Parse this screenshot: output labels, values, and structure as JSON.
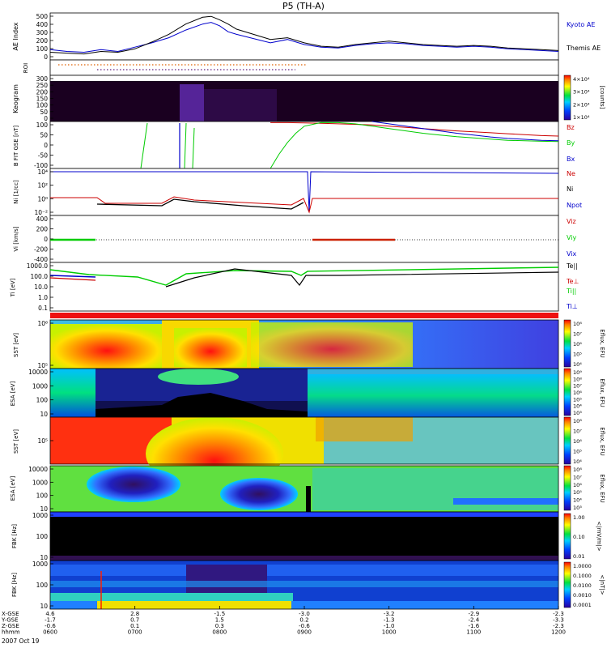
{
  "title": "P5 (TH-A)",
  "x_axis": {
    "rows": [
      {
        "label": "X-GSE",
        "values": [
          "4.6",
          "2.8",
          "-1.5",
          "-3.0",
          "-3.2",
          "-2.9",
          "-2.3"
        ]
      },
      {
        "label": "Y-GSE",
        "values": [
          "-1.7",
          "0.7",
          "1.5",
          "0.2",
          "-1.3",
          "-2.4",
          "-3.3"
        ]
      },
      {
        "label": "Z-GSE",
        "values": [
          "-0.6",
          "0.1",
          "0.3",
          "-0.6",
          "-1.0",
          "-1.6",
          "-2.3"
        ]
      },
      {
        "label": "hhmm",
        "values": [
          "0600",
          "0700",
          "0800",
          "0900",
          "1000",
          "1100",
          "1200"
        ]
      }
    ],
    "date_label": "2007 Oct 19"
  },
  "colorbars": {
    "kyogram": {
      "unit": "[counts]",
      "ticks": [
        "4×10⁴",
        "3×10⁴",
        "2×10⁴",
        "1×10⁴"
      ]
    },
    "sst1": {
      "unit": "Eflux, EFU",
      "ticks": [
        "10⁸",
        "10⁷",
        "10⁶",
        "10⁵",
        "10⁴"
      ]
    },
    "esa1": {
      "unit": "Eflux, EFU",
      "ticks": [
        "10⁹",
        "10⁸",
        "10⁷",
        "10⁶",
        "10⁵",
        "10⁴",
        "10³"
      ]
    },
    "sst2": {
      "unit": "Eflux, EFU",
      "ticks": [
        "10⁸",
        "10⁷",
        "10⁶",
        "10⁵",
        "10⁴"
      ]
    },
    "esa2": {
      "unit": "Eflux, EFU",
      "ticks": [
        "10⁸",
        "10⁷",
        "10⁶",
        "10⁵",
        "10⁴",
        "10³"
      ]
    },
    "fbk1": {
      "unit": "<|mV/m|>",
      "ticks": [
        "1.00",
        "0.10",
        "0.01"
      ]
    },
    "fbk2": {
      "unit": "<|nT|>",
      "ticks": [
        "1.0000",
        "0.1000",
        "0.0100",
        "0.0010",
        "0.0001"
      ]
    }
  },
  "chart_data": [
    {
      "type": "line",
      "panel": "ae",
      "ylabel": "AE Index",
      "ylim": [
        0,
        550
      ],
      "y_ticks": [
        "500",
        "400",
        "300",
        "200",
        "100",
        "0"
      ],
      "series": [
        {
          "name": "Kyoto AE",
          "color": "#0000cc",
          "t": [
            6.0,
            6.2,
            6.4,
            6.6,
            6.8,
            7.0,
            7.2,
            7.4,
            7.6,
            7.8,
            7.9,
            8.0,
            8.1,
            8.2,
            8.4,
            8.6,
            8.8,
            9.0,
            9.2,
            9.4,
            9.6,
            9.8,
            10.0,
            10.2,
            10.4,
            10.6,
            10.8,
            11.0,
            11.2,
            11.4,
            11.6,
            11.8,
            12.0
          ],
          "y": [
            120,
            100,
            90,
            120,
            100,
            150,
            200,
            260,
            350,
            420,
            440,
            400,
            330,
            300,
            250,
            200,
            240,
            180,
            150,
            140,
            170,
            190,
            200,
            190,
            170,
            160,
            150,
            160,
            150,
            130,
            120,
            110,
            100
          ]
        },
        {
          "name": "Themis AE",
          "color": "#000000",
          "t": [
            6.0,
            6.2,
            6.4,
            6.6,
            6.8,
            7.0,
            7.2,
            7.4,
            7.6,
            7.8,
            7.9,
            8.0,
            8.1,
            8.2,
            8.4,
            8.6,
            8.8,
            9.0,
            9.2,
            9.4,
            9.6,
            9.8,
            10.0,
            10.2,
            10.4,
            10.6,
            10.8,
            11.0,
            11.2,
            11.4,
            11.6,
            11.8,
            12.0
          ],
          "y": [
            90,
            80,
            70,
            100,
            90,
            130,
            210,
            300,
            420,
            500,
            510,
            470,
            420,
            360,
            300,
            240,
            260,
            200,
            160,
            150,
            180,
            200,
            220,
            200,
            180,
            170,
            160,
            170,
            160,
            140,
            130,
            120,
            110
          ]
        }
      ]
    },
    {
      "type": "scatter",
      "panel": "roi",
      "ylabel": "ROI"
    },
    {
      "type": "heatmap",
      "panel": "kyogram",
      "ylabel": "Keogram",
      "y_ticks": [
        "300",
        "250",
        "200",
        "150",
        "100",
        "50",
        "0"
      ]
    },
    {
      "type": "line",
      "panel": "bfit",
      "ylabel": "B FIT GSE [nT]",
      "ylim": [
        -100,
        100
      ],
      "y_ticks": [
        "100",
        "50",
        "0",
        "-50",
        "-100"
      ],
      "series": [
        {
          "name": "Bz",
          "color": "#cc0000",
          "t": [
            8.6,
            8.8,
            9.0,
            9.2,
            9.4,
            9.6,
            9.8,
            10.0,
            10.2,
            10.4,
            10.6,
            10.8,
            11.0,
            11.2,
            11.4,
            11.6,
            11.8,
            12.0
          ],
          "y": [
            95,
            95,
            94,
            92,
            90,
            88,
            85,
            80,
            75,
            70,
            65,
            60,
            56,
            52,
            48,
            44,
            40,
            38
          ]
        },
        {
          "name": "By",
          "color": "#00cc00",
          "t": [
            8.6,
            8.7,
            8.8,
            8.9,
            9.0,
            9.2,
            9.4,
            9.6,
            9.8,
            10.0,
            10.2,
            10.4,
            10.6,
            10.8,
            11.0,
            11.2,
            11.4,
            11.6,
            11.8,
            12.0
          ],
          "y": [
            -100,
            -40,
            10,
            50,
            80,
            96,
            95,
            90,
            80,
            70,
            60,
            50,
            42,
            35,
            30,
            25,
            20,
            18,
            16,
            15
          ]
        },
        {
          "name": "Bx",
          "color": "#0000cc",
          "t": [
            9.8,
            10.0,
            10.2,
            10.4,
            10.6,
            10.8,
            11.0,
            11.2,
            11.4,
            11.6,
            11.8,
            12.0
          ],
          "y": [
            100,
            90,
            80,
            70,
            60,
            50,
            42,
            34,
            28,
            24,
            20,
            18
          ]
        }
      ]
    },
    {
      "type": "line",
      "panel": "ni",
      "ylabel": "Ni [1/cc]",
      "y_ticks": [
        "10⁴",
        "10²",
        "10⁰",
        "10⁻²"
      ],
      "series": [
        {
          "name": "Ne",
          "color": "#cc0000"
        },
        {
          "name": "Ni",
          "color": "#000000"
        },
        {
          "name": "Npot",
          "color": "#0000cc"
        }
      ]
    },
    {
      "type": "line",
      "panel": "vi",
      "ylabel": "Vi [km/s]",
      "ylim": [
        -500,
        500
      ],
      "y_ticks": [
        "400",
        "200",
        "0",
        "-200",
        "-400"
      ],
      "series": [
        {
          "name": "Viz",
          "color": "#cc0000"
        },
        {
          "name": "Viy",
          "color": "#00cc00"
        },
        {
          "name": "Vix",
          "color": "#0000cc"
        }
      ]
    },
    {
      "type": "line",
      "panel": "ti",
      "ylabel": "Ti [eV]",
      "y_ticks": [
        "1000.0",
        "100.0",
        "10.0",
        "1.0",
        "0.1"
      ],
      "series": [
        {
          "name": "Te||",
          "color": "#000000"
        },
        {
          "name": "Te⊥",
          "color": "#cc0000"
        },
        {
          "name": "Ti||",
          "color": "#00cc00"
        },
        {
          "name": "Ti⊥",
          "color": "#0000cc"
        }
      ]
    },
    {
      "type": "heatmap",
      "panel": "sst1",
      "ylabel": "SST [eV]",
      "y_ticks": [
        "10⁶",
        "10⁵"
      ]
    },
    {
      "type": "heatmap",
      "panel": "esa1",
      "ylabel": "ESA [eV]",
      "y_ticks": [
        "10000",
        "1000",
        "100",
        "10"
      ]
    },
    {
      "type": "heatmap",
      "panel": "sst2",
      "ylabel": "SST [eV]",
      "y_ticks": [
        "10⁵"
      ]
    },
    {
      "type": "heatmap",
      "panel": "esa2",
      "ylabel": "ESA [eV]",
      "y_ticks": [
        "10000",
        "1000",
        "100",
        "10"
      ]
    },
    {
      "type": "heatmap",
      "panel": "fbk1",
      "ylabel": "FBK [Hz]",
      "y_ticks": [
        "1000",
        "100",
        "10"
      ]
    },
    {
      "type": "heatmap",
      "panel": "fbk2",
      "ylabel": "FBK [Hz]",
      "y_ticks": [
        "1000",
        "100",
        "10"
      ]
    }
  ]
}
